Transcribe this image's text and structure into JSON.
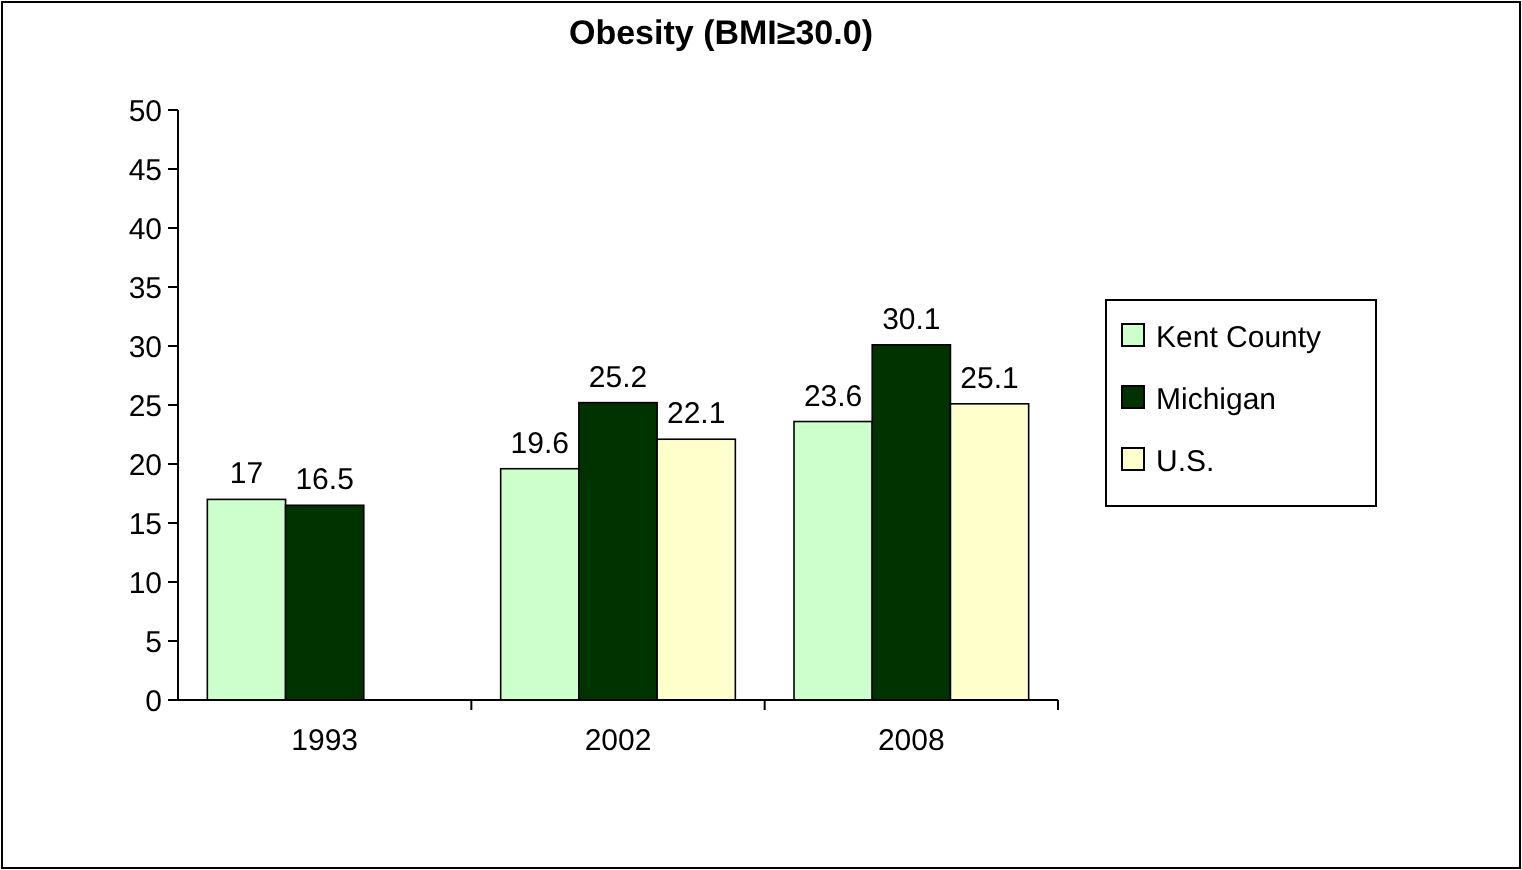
{
  "chart_data": {
    "type": "bar",
    "title": "Obesity (BMI≥30.0)",
    "categories": [
      "1993",
      "2002",
      "2008"
    ],
    "series": [
      {
        "name": "Kent County",
        "color": "#ccffcc",
        "values": [
          17,
          19.6,
          23.6
        ]
      },
      {
        "name": "Michigan",
        "color": "#003300",
        "values": [
          16.5,
          25.2,
          30.1
        ]
      },
      {
        "name": "U.S.",
        "color": "#ffffcc",
        "values": [
          null,
          22.1,
          25.1
        ]
      }
    ],
    "ylim": [
      0,
      50
    ],
    "yticks": [
      0,
      5,
      10,
      15,
      20,
      25,
      30,
      35,
      40,
      45,
      50
    ],
    "data_labels": true,
    "legend": "right",
    "grid": false
  }
}
